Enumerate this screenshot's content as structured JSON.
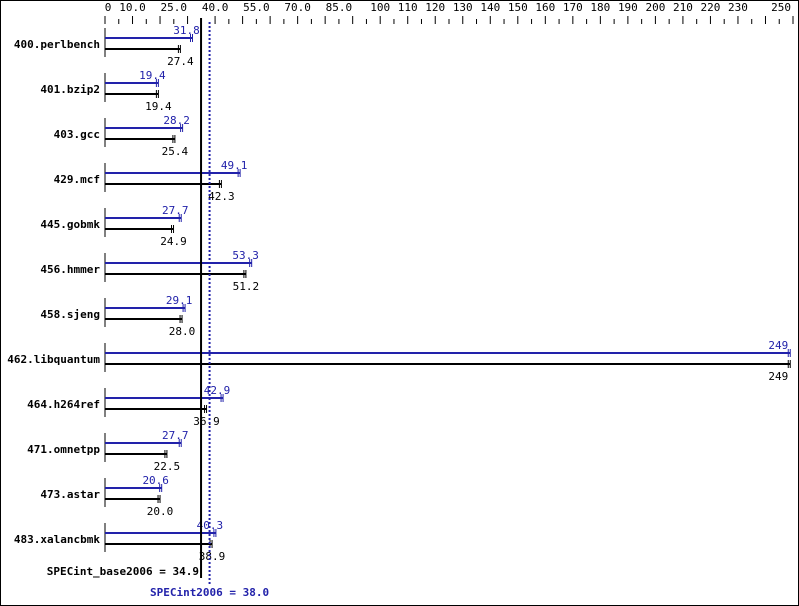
{
  "chart_data": {
    "type": "bar",
    "orientation": "horizontal",
    "categories": [
      "400.perlbench",
      "401.bzip2",
      "403.gcc",
      "429.mcf",
      "445.gobmk",
      "456.hmmer",
      "458.sjeng",
      "462.libquantum",
      "464.h264ref",
      "471.omnetpp",
      "473.astar",
      "483.xalancbmk"
    ],
    "series": [
      {
        "name": "SPECint2006",
        "color": "#2222aa",
        "values": [
          31.8,
          19.4,
          28.2,
          49.1,
          27.7,
          53.3,
          29.1,
          249,
          42.9,
          27.7,
          20.6,
          40.3
        ]
      },
      {
        "name": "SPECint_base2006",
        "color": "#000000",
        "values": [
          27.4,
          19.4,
          25.4,
          42.3,
          24.9,
          51.2,
          28.0,
          249,
          36.9,
          22.5,
          20.0,
          38.9
        ]
      }
    ],
    "value_labels_base": [
      "27.4",
      "19.4",
      "25.4",
      "42.3",
      "24.9",
      "51.2",
      "28.0",
      "249",
      "36.9",
      "22.5",
      "20.0",
      "38.9"
    ],
    "value_labels_peak": [
      "31.8",
      "19.4",
      "28.2",
      "49.1",
      "27.7",
      "53.3",
      "29.1",
      "249",
      "42.9",
      "27.7",
      "20.6",
      "40.3"
    ],
    "xlim": [
      0,
      250
    ],
    "x_ticks": [
      0,
      10,
      25,
      40,
      55,
      70,
      85,
      100,
      110,
      120,
      130,
      140,
      150,
      160,
      170,
      180,
      190,
      200,
      210,
      220,
      230,
      250
    ],
    "x_tick_labels": [
      "0",
      "10.0",
      "25.0",
      "40.0",
      "55.0",
      "70.0",
      "85.0",
      "100",
      "110",
      "120",
      "130",
      "140",
      "150",
      "160",
      "170",
      "180",
      "190",
      "200",
      "210",
      "220",
      "230",
      "250"
    ],
    "axis_position": "top",
    "reference_lines": [
      {
        "label": "SPECint_base2006 = 34.9",
        "value": 34.9,
        "color": "#000000",
        "style": "solid"
      },
      {
        "label": "SPECint2006 = 38.0",
        "value": 38.0,
        "color": "#2222aa",
        "style": "dotted"
      }
    ],
    "grid": false
  }
}
